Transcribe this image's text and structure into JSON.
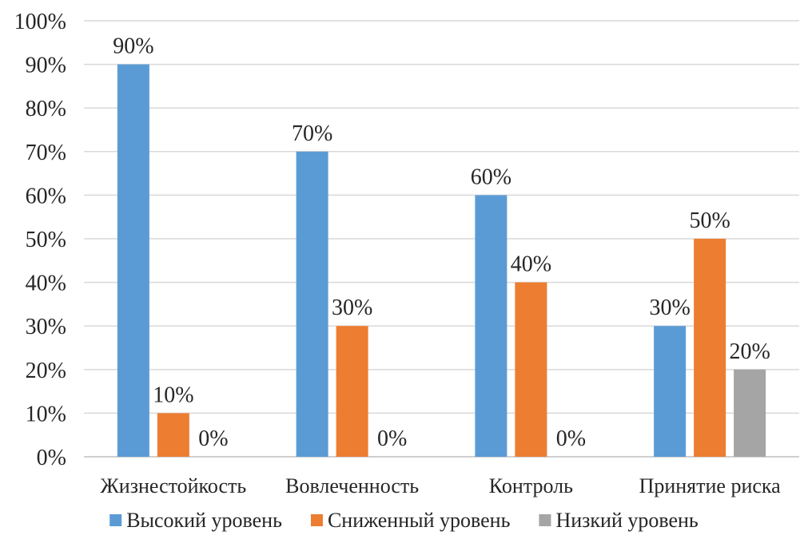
{
  "chart_data": {
    "type": "bar",
    "title": "",
    "xlabel": "",
    "ylabel": "",
    "ylim": [
      0,
      100
    ],
    "y_tick_step": 10,
    "y_unit": "%",
    "grid": true,
    "legend_position": "bottom",
    "categories": [
      "Жизнестойкость",
      "Вовлеченность",
      "Контроль",
      "Принятие риска"
    ],
    "series": [
      {
        "name": "Высокий уровень",
        "color": "#5B9BD5",
        "values": [
          90,
          70,
          60,
          30
        ]
      },
      {
        "name": "Сниженный уровень",
        "color": "#ED7D31",
        "values": [
          10,
          30,
          40,
          50
        ]
      },
      {
        "name": "Низкий уровень",
        "color": "#A5A5A5",
        "values": [
          0,
          0,
          0,
          20
        ]
      }
    ]
  }
}
